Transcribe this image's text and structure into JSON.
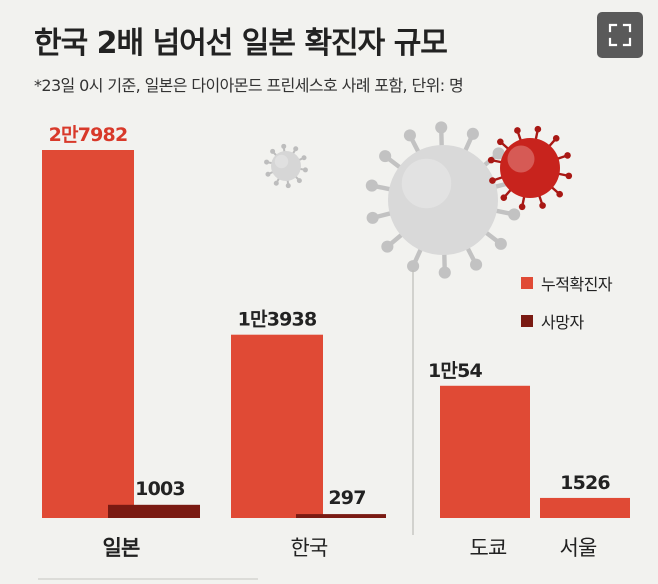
{
  "header": {
    "title": "한국 2배 넘어선 일본 확진자 규모",
    "subtitle": "*23일 0시 기준, 일본은 다이아몬드 프린세스호 사례 포함, 단위: 명"
  },
  "toolbar": {
    "expand_icon": "expand-icon"
  },
  "colors": {
    "confirmed": "#e04a35",
    "deaths": "#7a1a12",
    "virus_grey": "#cfcfcf",
    "virus_red": "#c8231d",
    "highlight_label": "#d8392a"
  },
  "legend": {
    "items": [
      {
        "label": "누적확진자",
        "color": "#e04a35"
      },
      {
        "label": "사망자",
        "color": "#7a1a12"
      }
    ]
  },
  "chart_data": [
    {
      "type": "bar",
      "categories": [
        "일본",
        "한국"
      ],
      "series": [
        {
          "name": "누적확진자",
          "values": [
            27982,
            13938
          ],
          "labels": [
            "2만7982",
            "1만3938"
          ]
        },
        {
          "name": "사망자",
          "values": [
            1003,
            297
          ],
          "labels": [
            "1003",
            "297"
          ]
        }
      ],
      "ylim": [
        0,
        27982
      ]
    },
    {
      "type": "bar",
      "categories": [
        "도쿄",
        "서울"
      ],
      "series": [
        {
          "name": "누적확진자",
          "values": [
            10054,
            1526
          ],
          "labels": [
            "1만54",
            "1526"
          ]
        }
      ],
      "ylim": [
        0,
        27982
      ]
    }
  ]
}
